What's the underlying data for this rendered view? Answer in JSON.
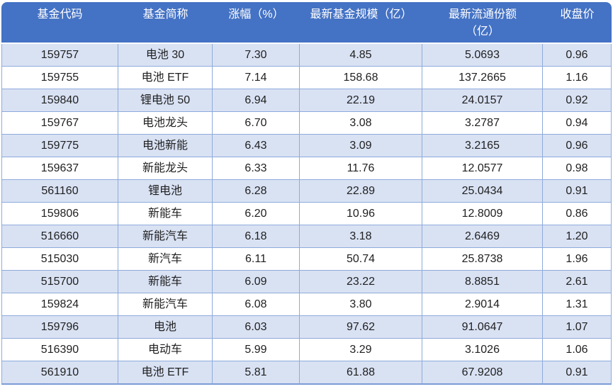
{
  "table": {
    "columns": [
      {
        "key": "code",
        "label": "基金代码"
      },
      {
        "key": "name",
        "label": "基金简称"
      },
      {
        "key": "change",
        "label": "涨幅（%）"
      },
      {
        "key": "scale",
        "label": "最新基金规模（亿）"
      },
      {
        "key": "shares",
        "label": "最新流通份额\n（亿）"
      },
      {
        "key": "close",
        "label": "收盘价"
      }
    ],
    "rows": [
      [
        "159757",
        "电池 30",
        "7.30",
        "4.85",
        "5.0693",
        "0.96"
      ],
      [
        "159755",
        "电池 ETF",
        "7.14",
        "158.68",
        "137.2665",
        "1.16"
      ],
      [
        "159840",
        "锂电池 50",
        "6.94",
        "22.19",
        "24.0157",
        "0.92"
      ],
      [
        "159767",
        "电池龙头",
        "6.70",
        "3.08",
        "3.2787",
        "0.94"
      ],
      [
        "159775",
        "电池新能",
        "6.43",
        "3.09",
        "3.2165",
        "0.96"
      ],
      [
        "159637",
        "新能龙头",
        "6.33",
        "11.76",
        "12.0577",
        "0.98"
      ],
      [
        "561160",
        "锂电池",
        "6.28",
        "22.89",
        "25.0434",
        "0.91"
      ],
      [
        "159806",
        "新能车",
        "6.20",
        "10.96",
        "12.8009",
        "0.86"
      ],
      [
        "516660",
        "新能汽车",
        "6.18",
        "3.18",
        "2.6469",
        "1.20"
      ],
      [
        "515030",
        "新汽车",
        "6.11",
        "50.74",
        "25.8738",
        "1.96"
      ],
      [
        "515700",
        "新能车",
        "6.09",
        "23.22",
        "8.8851",
        "2.61"
      ],
      [
        "159824",
        "新能汽车",
        "6.08",
        "3.80",
        "2.9014",
        "1.31"
      ],
      [
        "159796",
        "电池",
        "6.03",
        "97.62",
        "91.0647",
        "1.07"
      ],
      [
        "516390",
        "电动车",
        "5.99",
        "3.29",
        "3.1026",
        "1.06"
      ],
      [
        "561910",
        "电池 ETF",
        "5.81",
        "61.88",
        "67.9208",
        "0.91"
      ]
    ]
  },
  "colors": {
    "header_bg": "#4472C4",
    "header_text": "#FFFFFF",
    "band_bg": "#D9E2F3",
    "border": "#8EAADB",
    "bottom_border": "#7A9BD6",
    "text": "#1F1F1F"
  }
}
